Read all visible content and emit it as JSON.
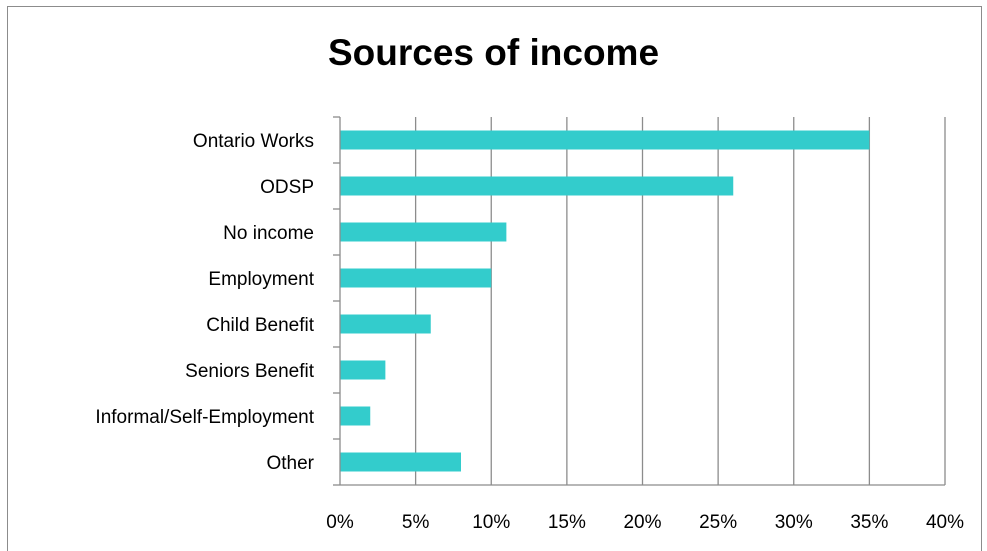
{
  "chart_data": {
    "type": "bar",
    "orientation": "horizontal",
    "title": "Sources of income",
    "xlabel": "",
    "ylabel": "",
    "categories": [
      "Ontario Works",
      "ODSP",
      "No income",
      "Employment",
      "Child Benefit",
      "Seniors Benefit",
      "Informal/Self-Employment",
      "Other"
    ],
    "values": [
      0.35,
      0.26,
      0.11,
      0.1,
      0.06,
      0.03,
      0.02,
      0.08
    ],
    "xlim": [
      0,
      0.4
    ],
    "x_ticks": [
      0,
      0.05,
      0.1,
      0.15,
      0.2,
      0.25,
      0.3,
      0.35,
      0.4
    ],
    "x_tick_labels": [
      "0%",
      "5%",
      "10%",
      "15%",
      "20%",
      "25%",
      "30%",
      "35%",
      "40%"
    ],
    "grid": true,
    "legend": "none",
    "bar_color": "#33CCCC",
    "grid_color": "#8C8C8C"
  }
}
